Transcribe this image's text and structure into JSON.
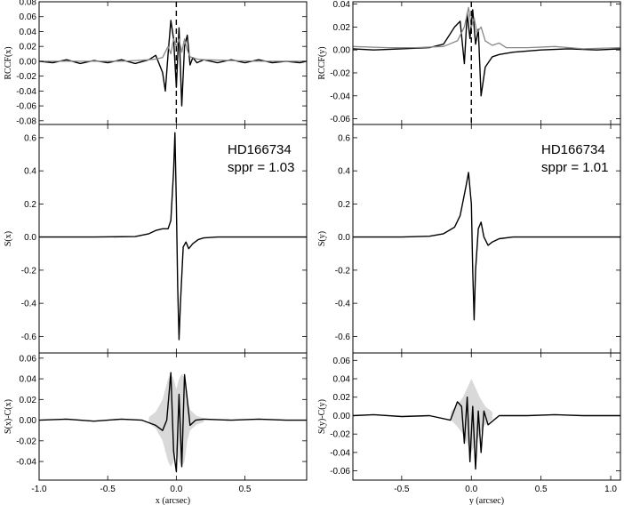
{
  "chart_data": [
    {
      "id": "left-rccf",
      "type": "line",
      "ylabel": "RCCF(x)",
      "xlim": [
        -1.0,
        0.95
      ],
      "ylim": [
        -0.085,
        0.08
      ],
      "yticks": [
        0.08,
        0.06,
        0.04,
        0.02,
        0.0,
        -0.02,
        -0.04,
        -0.06,
        -0.08
      ],
      "ytick_labels": [
        "0.08",
        "0.06",
        "0.04",
        "0.02",
        "0.00",
        "-0.02",
        "-0.04",
        "-0.06",
        "-0.08"
      ],
      "vline_x": 0.0,
      "series": [
        {
          "color": "#000000",
          "x": [
            -1.0,
            -0.9,
            -0.8,
            -0.7,
            -0.6,
            -0.5,
            -0.4,
            -0.3,
            -0.2,
            -0.15,
            -0.1,
            -0.08,
            -0.06,
            -0.04,
            -0.02,
            0.0,
            0.02,
            0.04,
            0.06,
            0.08,
            0.1,
            0.12,
            0.15,
            0.2,
            0.3,
            0.4,
            0.5,
            0.6,
            0.7,
            0.8,
            0.9,
            0.95
          ],
          "y": [
            0.0,
            -0.002,
            0.002,
            -0.003,
            0.001,
            -0.002,
            0.002,
            -0.003,
            0.002,
            0.008,
            -0.015,
            -0.04,
            0.01,
            0.055,
            0.03,
            -0.035,
            0.045,
            -0.06,
            0.02,
            0.035,
            -0.005,
            0.005,
            -0.002,
            0.002,
            -0.002,
            0.002,
            -0.002,
            0.002,
            -0.002,
            0.0,
            -0.002,
            0.0
          ]
        },
        {
          "color": "#888888",
          "x": [
            -1.0,
            -0.8,
            -0.6,
            -0.4,
            -0.3,
            -0.2,
            -0.15,
            -0.1,
            -0.06,
            -0.04,
            -0.02,
            0.0,
            0.02,
            0.04,
            0.06,
            0.08,
            0.1,
            0.15,
            0.2,
            0.4,
            0.6,
            0.8,
            0.95
          ],
          "y": [
            0.0,
            0.0,
            0.0,
            0.0,
            0.001,
            0.002,
            0.003,
            0.005,
            0.02,
            0.01,
            0.03,
            0.02,
            0.03,
            0.012,
            0.03,
            0.015,
            0.006,
            0.003,
            0.002,
            0.001,
            0.0,
            0.0,
            0.0
          ]
        }
      ]
    },
    {
      "id": "left-s",
      "type": "line",
      "ylabel": "S(x)",
      "annotation": [
        "HD166734",
        "sppr = 1.03"
      ],
      "xlim": [
        -1.0,
        0.95
      ],
      "ylim": [
        -0.7,
        0.68
      ],
      "yticks": [
        0.6,
        0.4,
        0.2,
        0.0,
        -0.2,
        -0.4,
        -0.6
      ],
      "ytick_labels": [
        "0.6",
        "0.4",
        "0.2",
        "0.0",
        "-0.2",
        "-0.4",
        "-0.6"
      ],
      "series": [
        {
          "color": "#000000",
          "x": [
            -1.0,
            -0.6,
            -0.3,
            -0.2,
            -0.15,
            -0.1,
            -0.06,
            -0.04,
            -0.02,
            -0.01,
            0.0,
            0.01,
            0.02,
            0.03,
            0.05,
            0.07,
            0.09,
            0.12,
            0.16,
            0.2,
            0.3,
            0.5,
            0.7,
            0.95
          ],
          "y": [
            0.0,
            0.0,
            0.003,
            0.02,
            0.04,
            0.05,
            0.05,
            0.1,
            0.4,
            0.63,
            0.2,
            -0.3,
            -0.62,
            -0.4,
            -0.06,
            -0.03,
            -0.07,
            -0.04,
            -0.015,
            -0.005,
            0.0,
            0.0,
            0.0,
            0.0
          ]
        }
      ]
    },
    {
      "id": "left-diff",
      "type": "line",
      "ylabel": "S(x)-C(x)",
      "xlabel": "x (arcsec)",
      "xlim": [
        -1.0,
        0.95
      ],
      "ylim": [
        -0.058,
        0.065
      ],
      "yticks": [
        0.06,
        0.04,
        0.02,
        0.0,
        -0.02,
        -0.04
      ],
      "ytick_labels": [
        "0.06",
        "0.04",
        "0.02",
        "0.00",
        "-0.02",
        "-0.04"
      ],
      "xticks": [
        -1.0,
        -0.5,
        0.0,
        0.5
      ],
      "xtick_labels": [
        "-1.0",
        "-0.5",
        "0.0",
        "0.5"
      ],
      "band": {
        "x": [
          -0.2,
          -0.15,
          -0.1,
          -0.06,
          -0.04,
          -0.02,
          0.0,
          0.02,
          0.04,
          0.06,
          0.08,
          0.1,
          0.15,
          0.2
        ],
        "hi": [
          0.003,
          0.008,
          0.02,
          0.04,
          0.045,
          0.04,
          0.03,
          0.04,
          0.045,
          0.04,
          0.02,
          0.01,
          0.004,
          0.002
        ],
        "lo": [
          -0.003,
          -0.008,
          -0.02,
          -0.04,
          -0.045,
          -0.04,
          -0.03,
          -0.04,
          -0.045,
          -0.04,
          -0.02,
          -0.01,
          -0.004,
          -0.002
        ]
      },
      "series": [
        {
          "color": "#000000",
          "x": [
            -1.0,
            -0.8,
            -0.6,
            -0.4,
            -0.25,
            -0.15,
            -0.1,
            -0.07,
            -0.04,
            -0.02,
            0.0,
            0.02,
            0.04,
            0.06,
            0.08,
            0.1,
            0.14,
            0.2,
            0.4,
            0.6,
            0.8,
            0.95
          ],
          "y": [
            0.0,
            0.001,
            -0.001,
            0.001,
            0.0,
            -0.005,
            -0.01,
            0.0,
            0.046,
            -0.03,
            -0.05,
            0.025,
            -0.045,
            0.044,
            0.02,
            -0.005,
            0.0,
            0.001,
            0.0,
            0.001,
            0.0,
            0.0
          ]
        }
      ]
    },
    {
      "id": "right-rccf",
      "type": "line",
      "ylabel": "RCCF(y)",
      "xlim": [
        -0.85,
        1.07
      ],
      "ylim": [
        -0.065,
        0.042
      ],
      "yticks": [
        0.04,
        0.02,
        0.0,
        -0.02,
        -0.04,
        -0.06
      ],
      "ytick_labels": [
        "0.04",
        "0.02",
        "0.00",
        "-0.02",
        "-0.04",
        "-0.06"
      ],
      "vline_x": 0.0,
      "series": [
        {
          "color": "#000000",
          "x": [
            -0.85,
            -0.7,
            -0.5,
            -0.3,
            -0.2,
            -0.12,
            -0.08,
            -0.05,
            -0.03,
            -0.01,
            0.01,
            0.03,
            0.05,
            0.07,
            0.1,
            0.15,
            0.2,
            0.3,
            0.5,
            0.7,
            0.9,
            1.07
          ],
          "y": [
            0.001,
            0.0,
            0.001,
            0.002,
            0.005,
            0.02,
            0.025,
            -0.012,
            0.032,
            0.01,
            0.035,
            0.005,
            0.018,
            -0.04,
            -0.015,
            -0.006,
            -0.004,
            -0.002,
            0.0,
            0.001,
            0.0,
            0.001
          ]
        },
        {
          "color": "#888888",
          "x": [
            -0.85,
            -0.6,
            -0.4,
            -0.2,
            -0.1,
            -0.05,
            -0.02,
            0.0,
            0.02,
            0.04,
            0.07,
            0.1,
            0.15,
            0.2,
            0.25,
            0.4,
            0.6,
            0.8,
            1.07
          ],
          "y": [
            0.003,
            0.002,
            0.002,
            0.003,
            0.008,
            0.02,
            0.037,
            0.02,
            0.028,
            0.015,
            0.02,
            0.008,
            0.004,
            0.006,
            0.002,
            0.002,
            0.003,
            0.001,
            0.002
          ]
        }
      ]
    },
    {
      "id": "right-s",
      "type": "line",
      "ylabel": "S(y)",
      "annotation": [
        "HD166734",
        "sppr = 1.01"
      ],
      "xlim": [
        -0.85,
        1.07
      ],
      "ylim": [
        -0.7,
        0.68
      ],
      "yticks": [
        0.6,
        0.4,
        0.2,
        0.0,
        -0.2,
        -0.4,
        -0.6
      ],
      "ytick_labels": [
        "0.6",
        "0.4",
        "0.2",
        "0.0",
        "-0.2",
        "-0.4",
        "-0.6"
      ],
      "series": [
        {
          "color": "#000000",
          "x": [
            -0.85,
            -0.5,
            -0.3,
            -0.2,
            -0.12,
            -0.08,
            -0.04,
            -0.02,
            0.0,
            0.01,
            0.02,
            0.03,
            0.05,
            0.07,
            0.09,
            0.12,
            0.15,
            0.2,
            0.3,
            0.5,
            0.8,
            1.07
          ],
          "y": [
            0.0,
            0.0,
            0.005,
            0.02,
            0.06,
            0.13,
            0.3,
            0.39,
            0.2,
            -0.2,
            -0.5,
            -0.2,
            0.05,
            0.09,
            0.0,
            -0.05,
            -0.03,
            -0.01,
            0.0,
            0.0,
            0.0,
            0.0
          ]
        }
      ]
    },
    {
      "id": "right-diff",
      "type": "line",
      "ylabel": "S(y)-C(y)",
      "xlabel": "y (arcsec)",
      "xlim": [
        -0.85,
        1.07
      ],
      "ylim": [
        -0.07,
        0.068
      ],
      "yticks": [
        0.06,
        0.04,
        0.02,
        0.0,
        -0.02,
        -0.04,
        -0.06
      ],
      "ytick_labels": [
        "0.06",
        "0.04",
        "0.02",
        "0.00",
        "-0.02",
        "-0.04",
        "-0.06"
      ],
      "xticks": [
        -0.5,
        0.0,
        0.5,
        1.0
      ],
      "xtick_labels": [
        "-0.5",
        "0.0",
        "0.5",
        "1.0"
      ],
      "band": {
        "x": [
          -0.15,
          -0.1,
          -0.06,
          -0.03,
          0.0,
          0.03,
          0.06,
          0.1,
          0.15
        ],
        "hi": [
          0.004,
          0.012,
          0.02,
          0.03,
          0.04,
          0.03,
          0.02,
          0.01,
          0.004
        ],
        "lo": [
          -0.004,
          -0.012,
          -0.02,
          -0.03,
          -0.04,
          -0.03,
          -0.02,
          -0.01,
          -0.004
        ]
      },
      "series": [
        {
          "color": "#000000",
          "x": [
            -0.85,
            -0.7,
            -0.5,
            -0.3,
            -0.15,
            -0.1,
            -0.07,
            -0.05,
            -0.03,
            -0.01,
            0.01,
            0.03,
            0.05,
            0.07,
            0.09,
            0.12,
            0.2,
            0.4,
            0.6,
            0.8,
            1.07
          ],
          "y": [
            0.0,
            0.001,
            -0.001,
            0.0,
            -0.005,
            0.015,
            0.01,
            -0.03,
            0.02,
            -0.05,
            0.01,
            -0.058,
            0.005,
            -0.04,
            0.005,
            -0.01,
            0.0,
            0.0,
            0.001,
            0.0,
            0.0
          ]
        }
      ]
    }
  ]
}
